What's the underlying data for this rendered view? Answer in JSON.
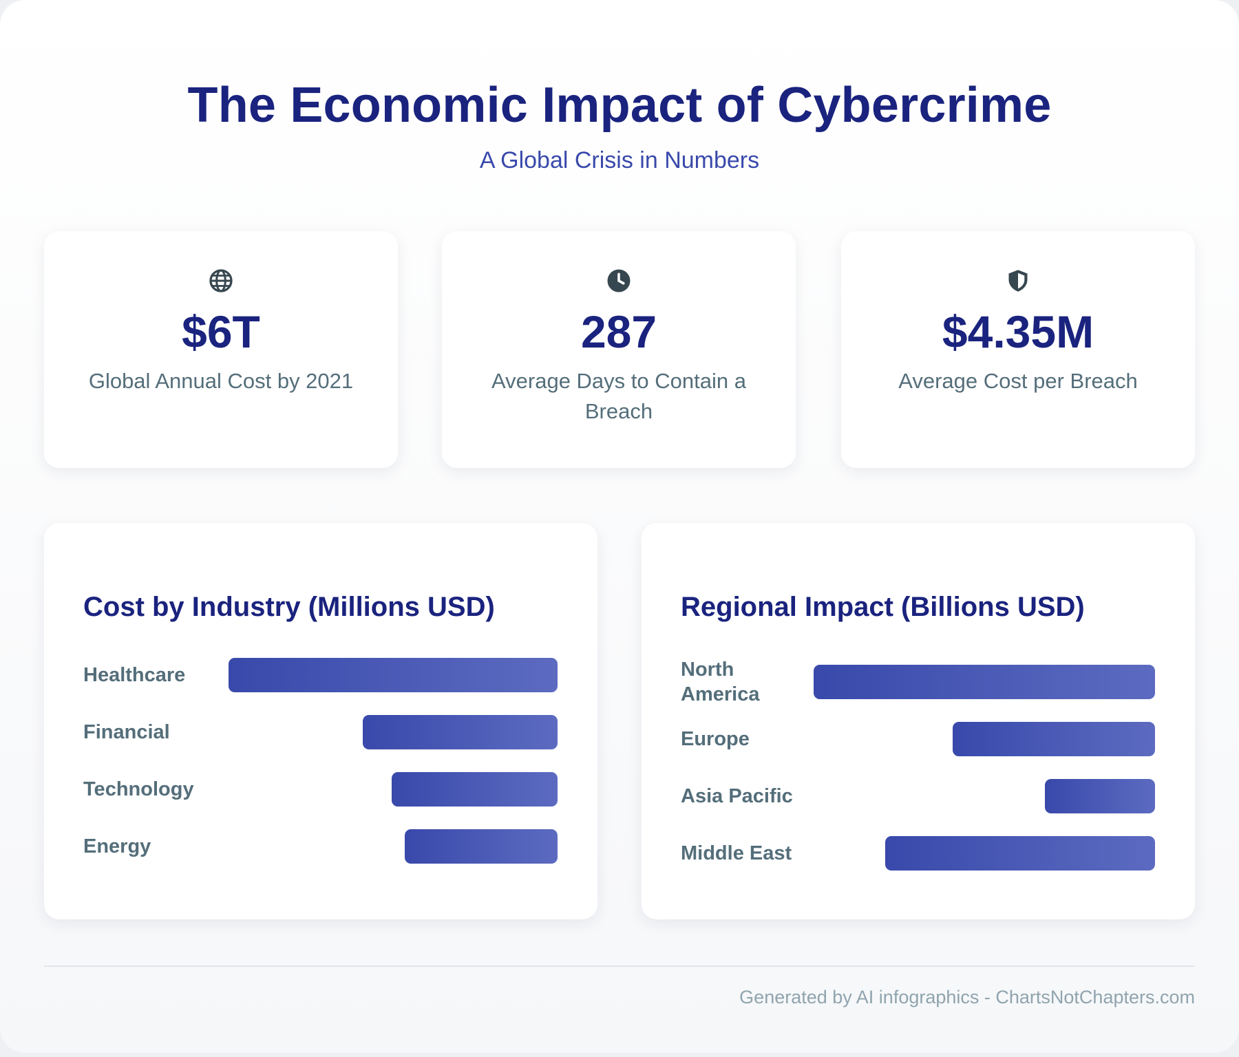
{
  "header": {
    "title": "The Economic Impact of Cybercrime",
    "subtitle": "A Global Crisis in Numbers"
  },
  "stats": [
    {
      "icon": "globe-icon",
      "value": "$6T",
      "label": "Global Annual Cost by 2021"
    },
    {
      "icon": "clock-icon",
      "value": "287",
      "label": "Average Days to Contain a Breach"
    },
    {
      "icon": "shield-icon",
      "value": "$4.35M",
      "label": "Average Cost per Breach"
    }
  ],
  "chart_data": [
    {
      "type": "bar",
      "orientation": "horizontal",
      "title": "Cost by Industry (Millions USD)",
      "categories": [
        "Healthcare",
        "Financial",
        "Technology",
        "Energy"
      ],
      "values": [
        10.1,
        5.97,
        5.1,
        4.7
      ],
      "value_labels_shown": false,
      "bar_color_start": "#3949ab",
      "bar_color_end": "#5c6bc0"
    },
    {
      "type": "bar",
      "orientation": "horizontal",
      "title": "Regional Impact (Billions USD)",
      "categories": [
        "North America",
        "Europe",
        "Asia Pacific",
        "Middle East"
      ],
      "values": [
        9.44,
        5.6,
        3.05,
        7.46
      ],
      "value_labels_shown": false,
      "bar_color_start": "#3949ab",
      "bar_color_end": "#5c6bc0"
    }
  ],
  "footer": {
    "text": "Generated by AI infographics - ChartsNotChapters.com"
  },
  "colors": {
    "title": "#1a237e",
    "subtitle": "#3949ab",
    "label": "#546e7a",
    "footer": "#90a4ae"
  }
}
